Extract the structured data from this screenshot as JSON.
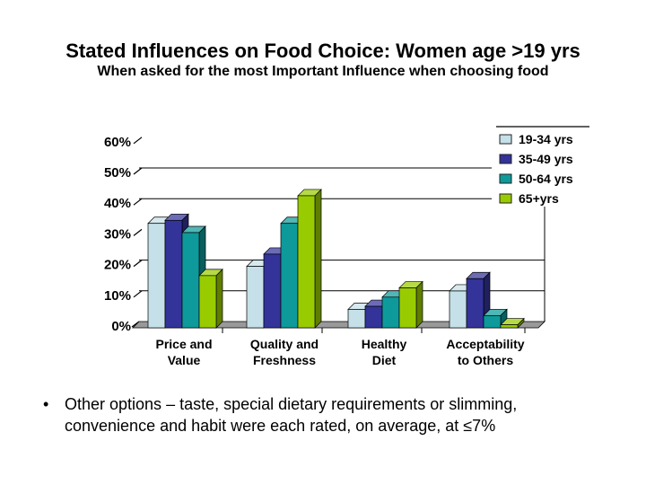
{
  "slide": {
    "title": "Stated Influences on Food Choice: Women age >19 yrs",
    "subtitle": "When asked for the most Important Influence when choosing food",
    "footnote": {
      "bullet_marker": "•",
      "lines": [
        "Other options – taste, special dietary requirements or slimming,",
        "convenience and habit were each rated, on average, at ≤7%"
      ]
    }
  },
  "chart_data": {
    "type": "bar",
    "style": "3d-clustered-column",
    "title": "",
    "xlabel": "",
    "ylabel": "",
    "categories": [
      [
        "Price and",
        "Value"
      ],
      [
        "Quality and",
        "Freshness"
      ],
      [
        "Healthy",
        "Diet"
      ],
      [
        "Acceptability",
        "to Others"
      ]
    ],
    "series": [
      {
        "name": "19-34 yrs",
        "color": "#C5E0E8",
        "values": [
          34,
          20,
          6,
          12
        ]
      },
      {
        "name": "35-49 yrs",
        "color": "#333399",
        "values": [
          35,
          24,
          7,
          16
        ]
      },
      {
        "name": "50-64 yrs",
        "color": "#0E9A9A",
        "values": [
          31,
          34,
          10,
          4
        ]
      },
      {
        "name": "65+yrs",
        "color": "#99CC00",
        "values": [
          17,
          43,
          13,
          1
        ]
      }
    ],
    "ylim": [
      0,
      60
    ],
    "y_tick_values": [
      0,
      10,
      20,
      30,
      40,
      50,
      60
    ],
    "y_tick_labels": [
      "0%",
      "10%",
      "20%",
      "30%",
      "40%",
      "50%",
      "60%"
    ],
    "gridline_values": [
      10,
      20,
      40,
      50
    ],
    "grid": "horizontal-only",
    "legend_position": "right",
    "colors": {
      "floor": "#999999",
      "outline": "#000000",
      "background": "#FFFFFF"
    }
  }
}
